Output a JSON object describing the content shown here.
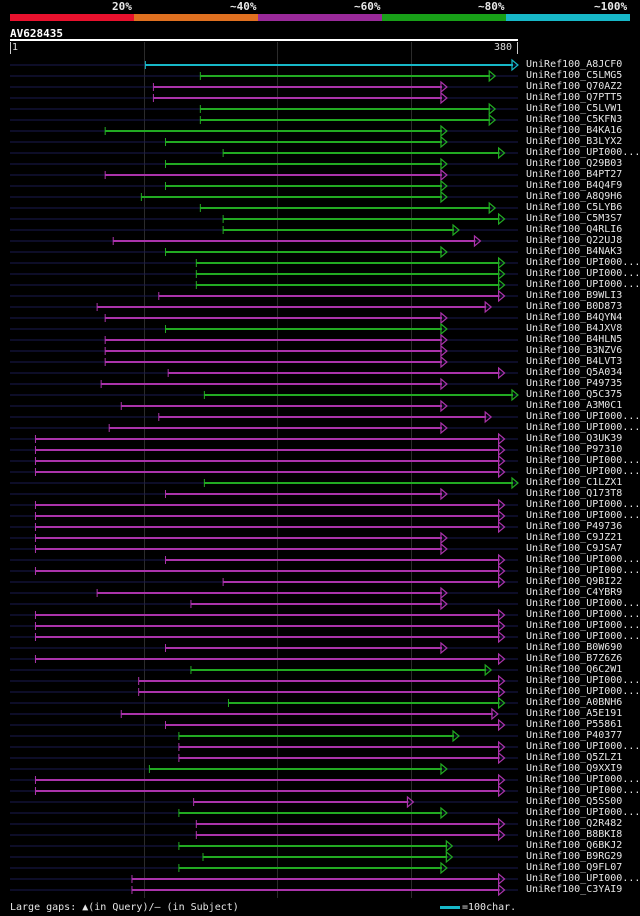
{
  "scale": {
    "segments": [
      {
        "label": "20%",
        "color": "#e8112d"
      },
      {
        "label": "~40%",
        "color": "#e07020"
      },
      {
        "label": "~60%",
        "color": "#9a2a9a"
      },
      {
        "label": "~80%",
        "color": "#18a018"
      },
      {
        "label": "~100%",
        "color": "#17b8c8"
      }
    ]
  },
  "query": {
    "name": "AV628435",
    "start": "1",
    "end": "380"
  },
  "chart_data": {
    "type": "alignment-overview",
    "query_length": 380,
    "hits": [
      {
        "label": "UniRef100_A8JCF0",
        "start": 102,
        "end": 380,
        "color": "#17b8c8"
      },
      {
        "label": "UniRef100_C5LMG5",
        "start": 143,
        "end": 363,
        "color": "#22aa22"
      },
      {
        "label": "UniRef100_Q70AZ2",
        "start": 108,
        "end": 327,
        "color": "#aa33aa"
      },
      {
        "label": "UniRef100_Q7PTT5",
        "start": 108,
        "end": 327,
        "color": "#aa33aa"
      },
      {
        "label": "UniRef100_C5LVW1",
        "start": 143,
        "end": 363,
        "color": "#22aa22"
      },
      {
        "label": "UniRef100_C5KFN3",
        "start": 143,
        "end": 363,
        "color": "#22aa22"
      },
      {
        "label": "UniRef100_B4KA16",
        "start": 72,
        "end": 327,
        "color": "#22aa22"
      },
      {
        "label": "UniRef100_B3LYX2",
        "start": 117,
        "end": 327,
        "color": "#22aa22"
      },
      {
        "label": "UniRef100_UPI000...",
        "start": 160,
        "end": 370,
        "color": "#22aa22"
      },
      {
        "label": "UniRef100_Q29B03",
        "start": 117,
        "end": 327,
        "color": "#22aa22"
      },
      {
        "label": "UniRef100_B4PT27",
        "start": 72,
        "end": 327,
        "color": "#aa33aa"
      },
      {
        "label": "UniRef100_B4Q4F9",
        "start": 117,
        "end": 327,
        "color": "#22aa22"
      },
      {
        "label": "UniRef100_A8Q9H6",
        "start": 99,
        "end": 327,
        "color": "#22aa22"
      },
      {
        "label": "UniRef100_C5LYB6",
        "start": 143,
        "end": 363,
        "color": "#22aa22"
      },
      {
        "label": "UniRef100_C5M3S7",
        "start": 160,
        "end": 370,
        "color": "#22aa22"
      },
      {
        "label": "UniRef100_Q4RLI6",
        "start": 160,
        "end": 336,
        "color": "#22aa22"
      },
      {
        "label": "UniRef100_Q22UJ8",
        "start": 78,
        "end": 352,
        "color": "#aa33aa"
      },
      {
        "label": "UniRef100_B4NAK3",
        "start": 117,
        "end": 327,
        "color": "#22aa22"
      },
      {
        "label": "UniRef100_UPI000...",
        "start": 140,
        "end": 370,
        "color": "#22aa22"
      },
      {
        "label": "UniRef100_UPI000...",
        "start": 140,
        "end": 370,
        "color": "#22aa22"
      },
      {
        "label": "UniRef100_UPI000...",
        "start": 140,
        "end": 370,
        "color": "#22aa22"
      },
      {
        "label": "UniRef100_B9WLI3",
        "start": 112,
        "end": 370,
        "color": "#aa33aa"
      },
      {
        "label": "UniRef100_B0D873",
        "start": 66,
        "end": 360,
        "color": "#aa33aa"
      },
      {
        "label": "UniRef100_B4QYN4",
        "start": 72,
        "end": 327,
        "color": "#aa33aa"
      },
      {
        "label": "UniRef100_B4JXV8",
        "start": 117,
        "end": 327,
        "color": "#22aa22"
      },
      {
        "label": "UniRef100_B4HLN5",
        "start": 72,
        "end": 327,
        "color": "#aa33aa"
      },
      {
        "label": "UniRef100_B3NZV6",
        "start": 72,
        "end": 327,
        "color": "#aa33aa"
      },
      {
        "label": "UniRef100_B4LVT3",
        "start": 72,
        "end": 327,
        "color": "#aa33aa"
      },
      {
        "label": "UniRef100_Q5A034",
        "start": 119,
        "end": 370,
        "color": "#aa33aa"
      },
      {
        "label": "UniRef100_P49735",
        "start": 69,
        "end": 327,
        "color": "#aa33aa"
      },
      {
        "label": "UniRef100_Q5C375",
        "start": 146,
        "end": 380,
        "color": "#22aa22"
      },
      {
        "label": "UniRef100_A3M0C1",
        "start": 84,
        "end": 327,
        "color": "#aa33aa"
      },
      {
        "label": "UniRef100_UPI000...",
        "start": 112,
        "end": 360,
        "color": "#aa33aa"
      },
      {
        "label": "UniRef100_UPI000...",
        "start": 75,
        "end": 327,
        "color": "#aa33aa"
      },
      {
        "label": "UniRef100_Q3UK39",
        "start": 20,
        "end": 370,
        "color": "#aa33aa"
      },
      {
        "label": "UniRef100_P97310",
        "start": 20,
        "end": 370,
        "color": "#aa33aa"
      },
      {
        "label": "UniRef100_UPI000...",
        "start": 20,
        "end": 370,
        "color": "#aa33aa"
      },
      {
        "label": "UniRef100_UPI000...",
        "start": 20,
        "end": 370,
        "color": "#aa33aa"
      },
      {
        "label": "UniRef100_C1LZX1",
        "start": 146,
        "end": 380,
        "color": "#22aa22"
      },
      {
        "label": "UniRef100_Q173T8",
        "start": 117,
        "end": 327,
        "color": "#aa33aa"
      },
      {
        "label": "UniRef100_UPI000...",
        "start": 20,
        "end": 370,
        "color": "#aa33aa"
      },
      {
        "label": "UniRef100_UPI000...",
        "start": 20,
        "end": 370,
        "color": "#aa33aa"
      },
      {
        "label": "UniRef100_P49736",
        "start": 20,
        "end": 370,
        "color": "#aa33aa"
      },
      {
        "label": "UniRef100_C9JZ21",
        "start": 20,
        "end": 327,
        "color": "#aa33aa"
      },
      {
        "label": "UniRef100_C9JSA7",
        "start": 20,
        "end": 327,
        "color": "#aa33aa"
      },
      {
        "label": "UniRef100_UPI000...",
        "start": 117,
        "end": 370,
        "color": "#aa33aa"
      },
      {
        "label": "UniRef100_UPI000...",
        "start": 20,
        "end": 370,
        "color": "#aa33aa"
      },
      {
        "label": "UniRef100_Q9BI22",
        "start": 160,
        "end": 370,
        "color": "#aa33aa"
      },
      {
        "label": "UniRef100_C4YBR9",
        "start": 66,
        "end": 327,
        "color": "#aa33aa"
      },
      {
        "label": "UniRef100_UPI000...",
        "start": 136,
        "end": 327,
        "color": "#aa33aa"
      },
      {
        "label": "UniRef100_UPI000...",
        "start": 20,
        "end": 370,
        "color": "#aa33aa"
      },
      {
        "label": "UniRef100_UPI000...",
        "start": 20,
        "end": 370,
        "color": "#aa33aa"
      },
      {
        "label": "UniRef100_UPI000...",
        "start": 20,
        "end": 370,
        "color": "#aa33aa"
      },
      {
        "label": "UniRef100_B0W690",
        "start": 117,
        "end": 327,
        "color": "#aa33aa"
      },
      {
        "label": "UniRef100_B7Z6Z6",
        "start": 20,
        "end": 370,
        "color": "#aa33aa"
      },
      {
        "label": "UniRef100_Q6C2W1",
        "start": 136,
        "end": 360,
        "color": "#22aa22"
      },
      {
        "label": "UniRef100_UPI000...",
        "start": 97,
        "end": 370,
        "color": "#aa33aa"
      },
      {
        "label": "UniRef100_UPI000...",
        "start": 97,
        "end": 370,
        "color": "#aa33aa"
      },
      {
        "label": "UniRef100_A0BNH6",
        "start": 164,
        "end": 370,
        "color": "#22aa22"
      },
      {
        "label": "UniRef100_A5E191",
        "start": 84,
        "end": 365,
        "color": "#aa33aa"
      },
      {
        "label": "UniRef100_P55861",
        "start": 117,
        "end": 370,
        "color": "#aa33aa"
      },
      {
        "label": "UniRef100_P40377",
        "start": 127,
        "end": 336,
        "color": "#22aa22"
      },
      {
        "label": "UniRef100_UPI000...",
        "start": 127,
        "end": 370,
        "color": "#aa33aa"
      },
      {
        "label": "UniRef100_Q5ZLZ1",
        "start": 127,
        "end": 370,
        "color": "#aa33aa"
      },
      {
        "label": "UniRef100_Q9XXI9",
        "start": 105,
        "end": 327,
        "color": "#22aa22"
      },
      {
        "label": "UniRef100_UPI000...",
        "start": 20,
        "end": 370,
        "color": "#aa33aa"
      },
      {
        "label": "UniRef100_UPI000...",
        "start": 20,
        "end": 370,
        "color": "#aa33aa"
      },
      {
        "label": "UniRef100_Q5SS00",
        "start": 138,
        "end": 302,
        "color": "#aa33aa"
      },
      {
        "label": "UniRef100_UPI000...",
        "start": 127,
        "end": 327,
        "color": "#22aa22"
      },
      {
        "label": "UniRef100_Q2R482",
        "start": 140,
        "end": 370,
        "color": "#aa33aa"
      },
      {
        "label": "UniRef100_B8BKI8",
        "start": 140,
        "end": 370,
        "color": "#aa33aa"
      },
      {
        "label": "UniRef100_Q6BKJ2",
        "start": 127,
        "end": 331,
        "color": "#22aa22"
      },
      {
        "label": "UniRef100_B9RG29",
        "start": 145,
        "end": 331,
        "color": "#22aa22"
      },
      {
        "label": "UniRef100_Q9FL07",
        "start": 127,
        "end": 327,
        "color": "#22aa22"
      },
      {
        "label": "UniRef100_UPI000...",
        "start": 92,
        "end": 370,
        "color": "#aa33aa"
      },
      {
        "label": "UniRef100_C3YAI9",
        "start": 92,
        "end": 370,
        "color": "#aa33aa"
      }
    ]
  },
  "legend": {
    "gaps_text": "Large gaps: ▲(in Query)/– (in Subject)",
    "bar_text": "=100char."
  }
}
